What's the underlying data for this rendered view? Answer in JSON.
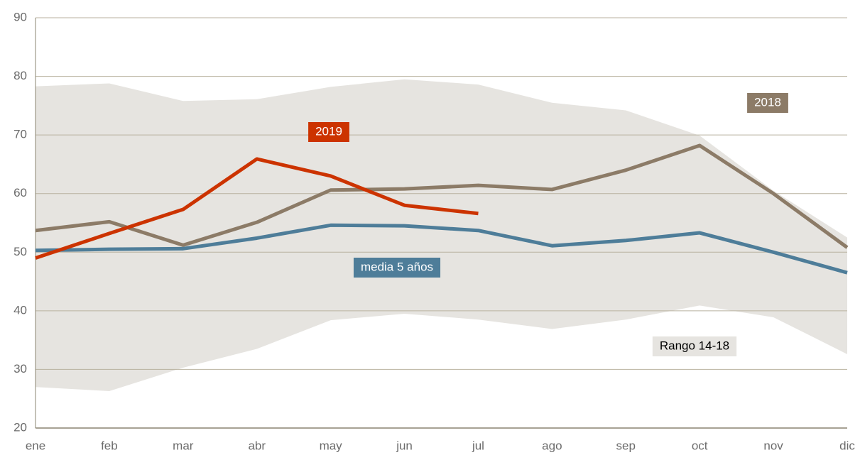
{
  "chart_data": {
    "type": "line",
    "categories": [
      "ene",
      "feb",
      "mar",
      "abr",
      "may",
      "jun",
      "jul",
      "ago",
      "sep",
      "oct",
      "nov",
      "dic"
    ],
    "series": [
      {
        "name": "Rango 14-18",
        "color": "#e6e4e0",
        "upper": [
          78.3,
          78.8,
          75.8,
          76.1,
          78.2,
          79.5,
          78.6,
          75.5,
          74.2,
          69.9,
          60.5,
          52.5
        ],
        "lower": [
          27.0,
          26.3,
          30.3,
          33.5,
          38.4,
          39.5,
          38.5,
          36.9,
          38.5,
          40.9,
          38.9,
          32.6
        ]
      },
      {
        "name": "2018",
        "color": "#8c7b67",
        "values": [
          53.7,
          55.2,
          51.2,
          55.1,
          60.6,
          60.8,
          61.4,
          60.7,
          64.0,
          68.2,
          60.0,
          50.8
        ]
      },
      {
        "name": "media 5 años",
        "color": "#4e7d99",
        "values": [
          50.3,
          50.5,
          50.6,
          52.4,
          54.6,
          54.5,
          53.7,
          51.1,
          52.0,
          53.3,
          50.0,
          46.5
        ]
      },
      {
        "name": "2019",
        "color": "#cc3300",
        "values": [
          49.0,
          53.2,
          57.3,
          65.9,
          63.0,
          58.0,
          56.6,
          null,
          null,
          null,
          null,
          null
        ]
      }
    ],
    "ylim": [
      20,
      90
    ],
    "yticks": [
      20,
      30,
      40,
      50,
      60,
      70,
      80,
      90
    ],
    "grid": true
  }
}
